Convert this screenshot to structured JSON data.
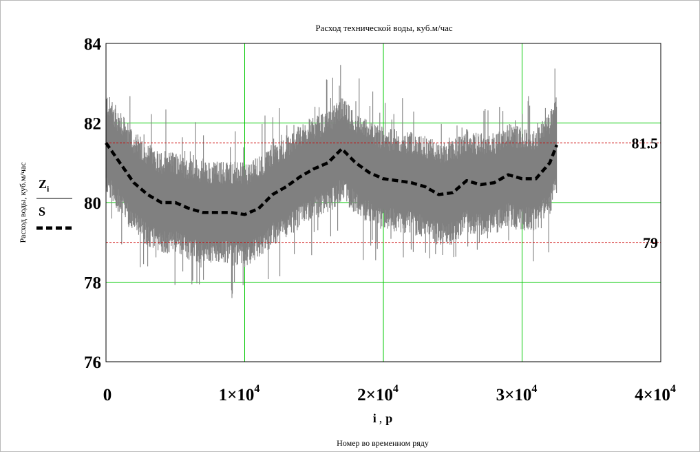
{
  "chart_data": {
    "type": "line",
    "title": "Расход технической воды, куб.м/час",
    "ylabel": "Расход воды, куб.м/час",
    "xlabel": "Номер во временном ряду",
    "x_variables": {
      "main": "i",
      "sep": ",",
      "second": "p"
    },
    "y_variables": {
      "series1": "Z",
      "series1_sub": "i",
      "series2": "S"
    },
    "xlim": [
      0,
      40000
    ],
    "ylim": [
      76,
      84
    ],
    "x_ticks": [
      {
        "value": 0,
        "mant": "0",
        "exp": ""
      },
      {
        "value": 10000,
        "mant": "1×10",
        "exp": "4"
      },
      {
        "value": 20000,
        "mant": "2×10",
        "exp": "4"
      },
      {
        "value": 30000,
        "mant": "3×10",
        "exp": "4"
      },
      {
        "value": 40000,
        "mant": "4×10",
        "exp": "4"
      }
    ],
    "y_ticks": [
      "76",
      "78",
      "80",
      "82",
      "84"
    ],
    "grid": true,
    "grid_color": "#00c800",
    "reference_lines": [
      {
        "value": 81.5,
        "label": "81.5",
        "color": "#cc0000",
        "style": "dotted"
      },
      {
        "value": 79,
        "label": "79",
        "color": "#cc0000",
        "style": "dotted"
      }
    ],
    "series": [
      {
        "name": "Z_i",
        "style": "noisy-band",
        "color": "#808080",
        "x_range": [
          0,
          32500
        ],
        "band_halfwidth_approx": 1.3
      },
      {
        "name": "S",
        "style": "dashed",
        "color": "#000000",
        "x": [
          0,
          1000,
          2000,
          3000,
          4000,
          5000,
          6000,
          7000,
          8000,
          9000,
          10000,
          11000,
          12000,
          13000,
          14000,
          15000,
          16000,
          17000,
          18000,
          19000,
          20000,
          21000,
          22000,
          23000,
          24000,
          25000,
          26000,
          27000,
          28000,
          29000,
          30000,
          31000,
          32000,
          32500
        ],
        "values": [
          81.5,
          81.0,
          80.5,
          80.2,
          80.0,
          80.0,
          79.85,
          79.75,
          79.75,
          79.75,
          79.7,
          79.85,
          80.2,
          80.4,
          80.65,
          80.85,
          81.0,
          81.35,
          81.0,
          80.75,
          80.6,
          80.55,
          80.5,
          80.4,
          80.2,
          80.25,
          80.55,
          80.45,
          80.5,
          80.7,
          80.6,
          80.6,
          81.0,
          81.45
        ]
      }
    ]
  }
}
